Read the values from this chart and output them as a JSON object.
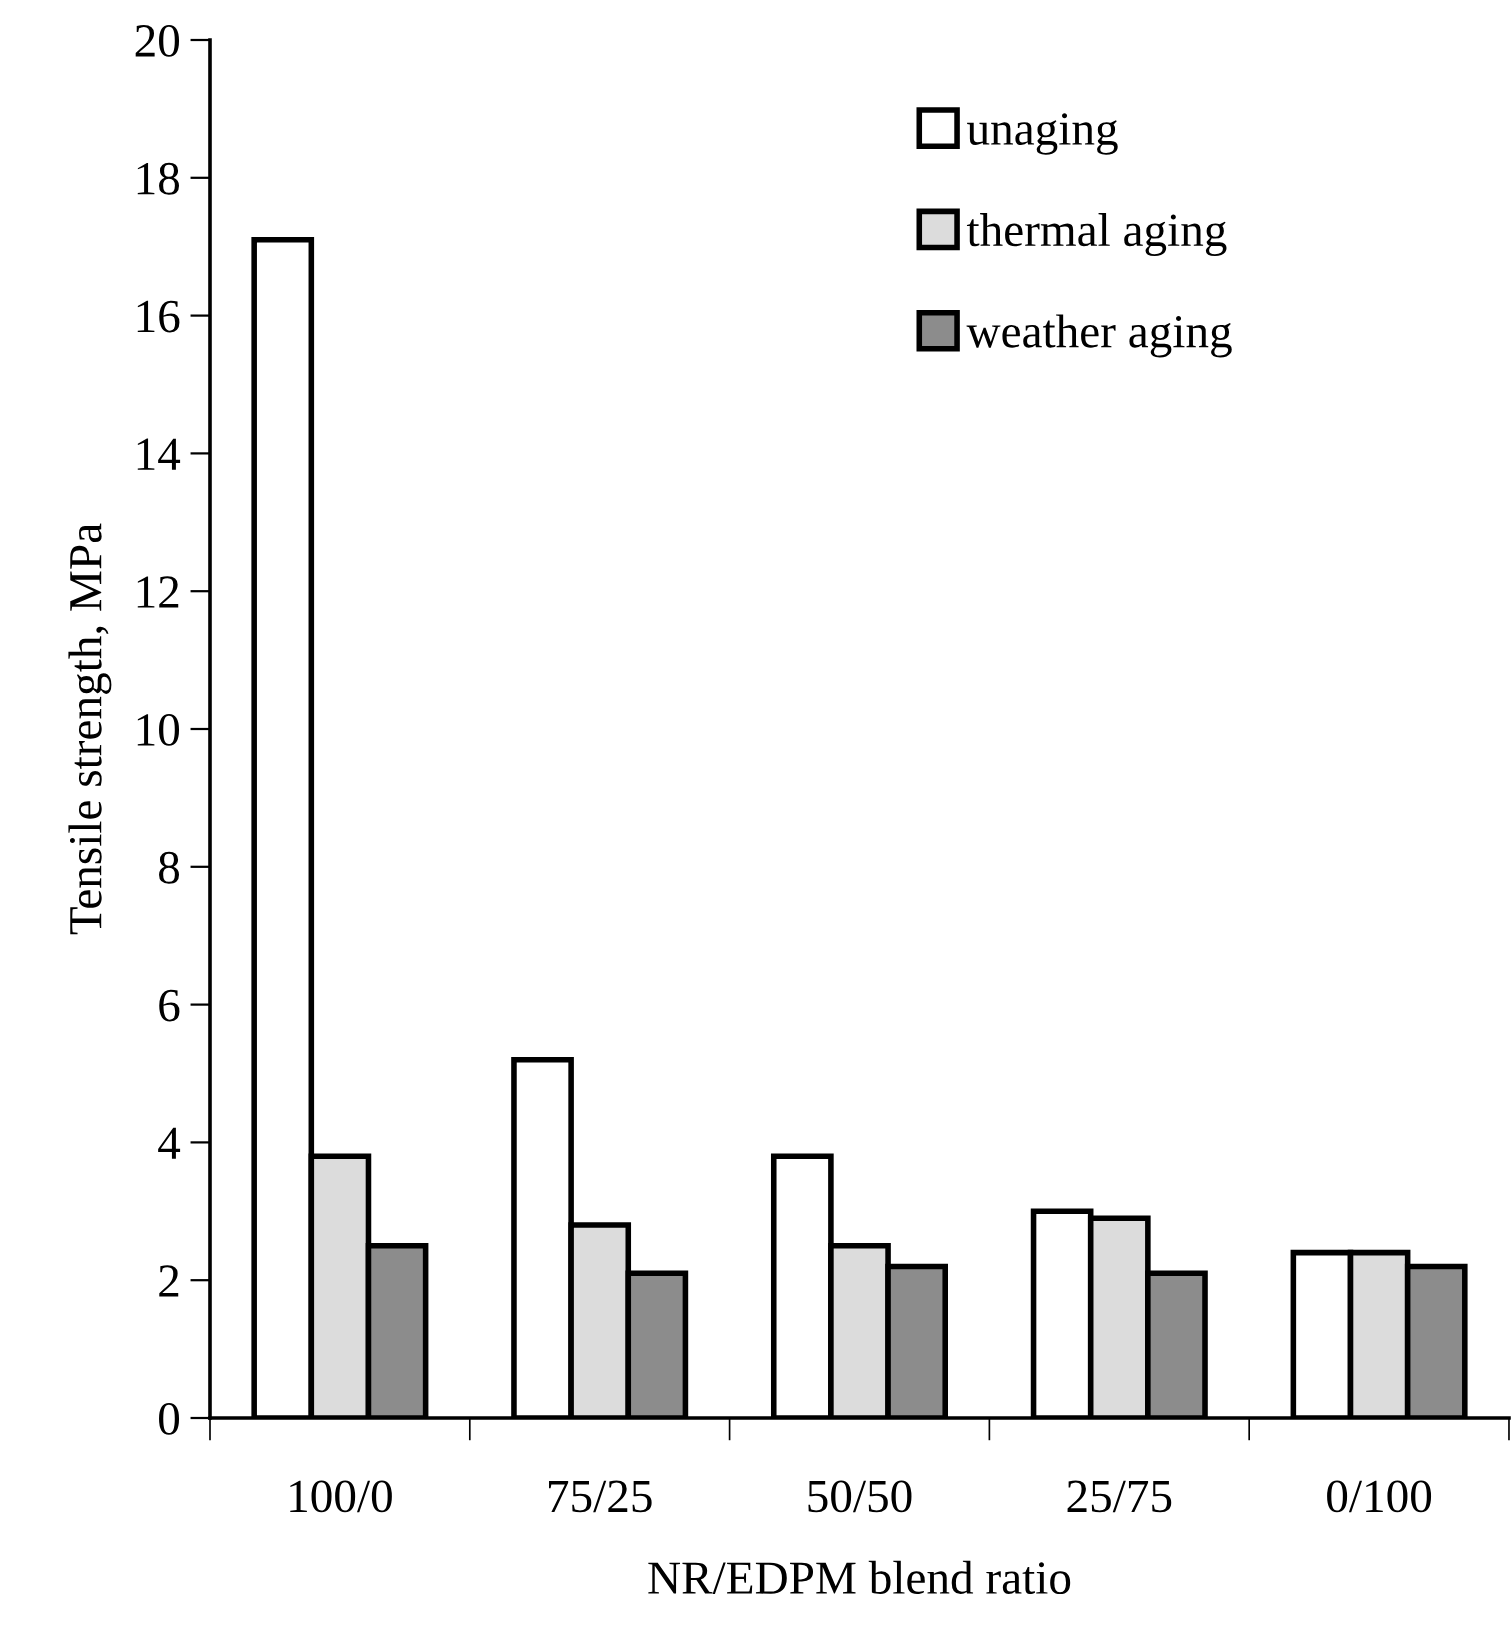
{
  "chart_data": {
    "type": "bar",
    "xlabel": "NR/EDPM blend ratio",
    "ylabel": "Tensile strength, MPa",
    "categories": [
      "100/0",
      "75/25",
      "50/50",
      "25/75",
      "0/100"
    ],
    "series": [
      {
        "name": "unaging",
        "color": "#ffffff",
        "values": [
          17.1,
          5.2,
          3.8,
          3.0,
          2.4
        ]
      },
      {
        "name": "thermal aging",
        "color": "#dcdcdc",
        "values": [
          3.8,
          2.8,
          2.5,
          2.9,
          2.4
        ]
      },
      {
        "name": "weather aging",
        "color": "#8c8c8c",
        "values": [
          2.5,
          2.1,
          2.2,
          2.1,
          2.2
        ]
      }
    ],
    "ylim": [
      0,
      20
    ],
    "yticks": [
      0,
      2,
      4,
      6,
      8,
      10,
      12,
      14,
      16,
      18,
      20
    ],
    "grid": false,
    "legend": "top right"
  }
}
